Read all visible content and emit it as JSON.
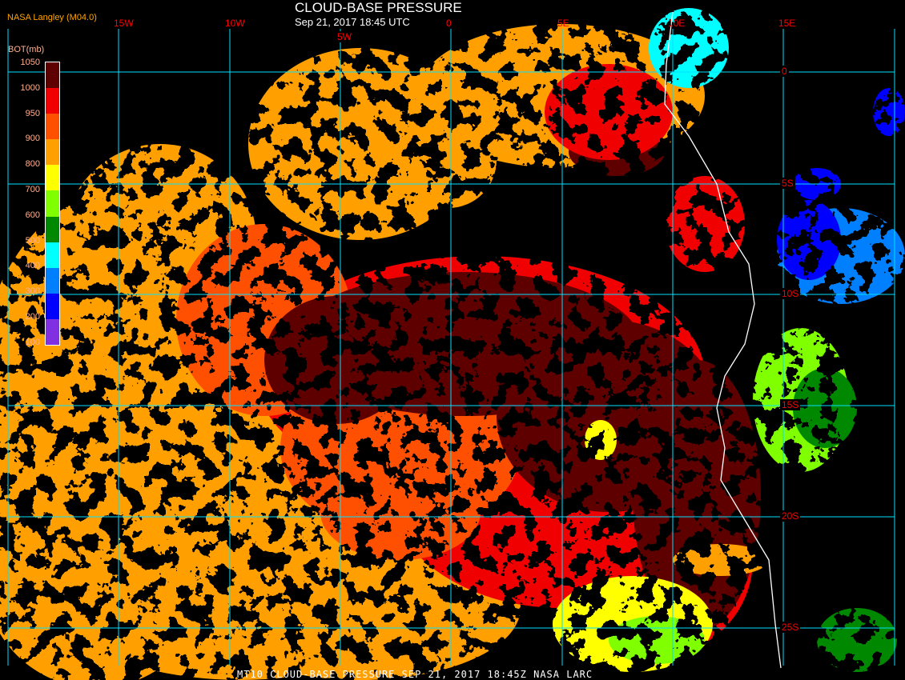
{
  "title": "CLOUD-BASE PRESSURE",
  "subtitle": "Sep 21, 2017 18:45 UTC",
  "credit": "NASA Langley (M04.0)",
  "footer": "MT10  CLOUD-BASE PRESSURE   SEP 21, 2017 18:45Z   NASA LARC",
  "legend": {
    "title": "BOT(mb)",
    "ticks": [
      "1050",
      "1000",
      "950",
      "900",
      "800",
      "700",
      "600",
      "500",
      "400",
      "300",
      "200",
      "100"
    ],
    "colors": [
      "#5e0000",
      "#f00000",
      "#ff5000",
      "#ffa000",
      "#ffff00",
      "#80ff00",
      "#008800",
      "#00ffff",
      "#0080ff",
      "#0000ff",
      "#8030e0"
    ]
  },
  "grid": {
    "color": "#00e0ff",
    "longitudes": [
      "",
      "15W",
      "10W",
      "5W",
      "0",
      "5E",
      "10E",
      "15E",
      ""
    ],
    "latitudes": [
      "0",
      "5S",
      "10S",
      "15S",
      "20S",
      "25S"
    ]
  },
  "coastline_color": "#ffffff"
}
